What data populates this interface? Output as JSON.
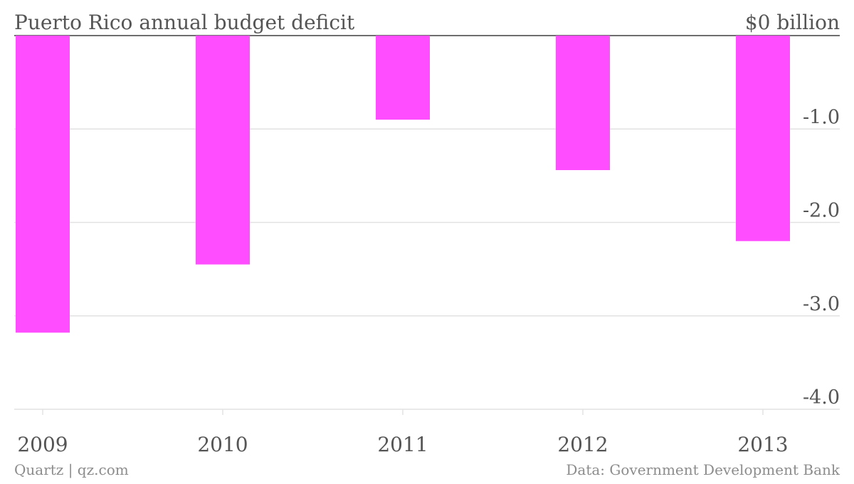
{
  "chart_data": {
    "type": "bar",
    "title": "Puerto Rico annual budget deficit",
    "categories": [
      "2009",
      "2010",
      "2011",
      "2012",
      "2013"
    ],
    "values": [
      -3.18,
      -2.45,
      -0.9,
      -1.44,
      -2.2
    ],
    "ylim": [
      -4.0,
      0
    ],
    "yticks": [
      {
        "value": 0,
        "label": "$0 billion"
      },
      {
        "value": -1.0,
        "label": "-1.0"
      },
      {
        "value": -2.0,
        "label": "-2.0"
      },
      {
        "value": -3.0,
        "label": "-3.0"
      },
      {
        "value": -4.0,
        "label": "-4.0"
      }
    ],
    "grid": true,
    "bar_color": "#ff4dff",
    "xlabel": "",
    "ylabel": ""
  },
  "footer": {
    "left": "Quartz | qz.com",
    "right": "Data: Government Development Bank"
  },
  "colors": {
    "text": "#555555",
    "footer_text": "#8c8c8c",
    "grid": "#e2e2e2",
    "baseline": "#6e6e6e"
  }
}
